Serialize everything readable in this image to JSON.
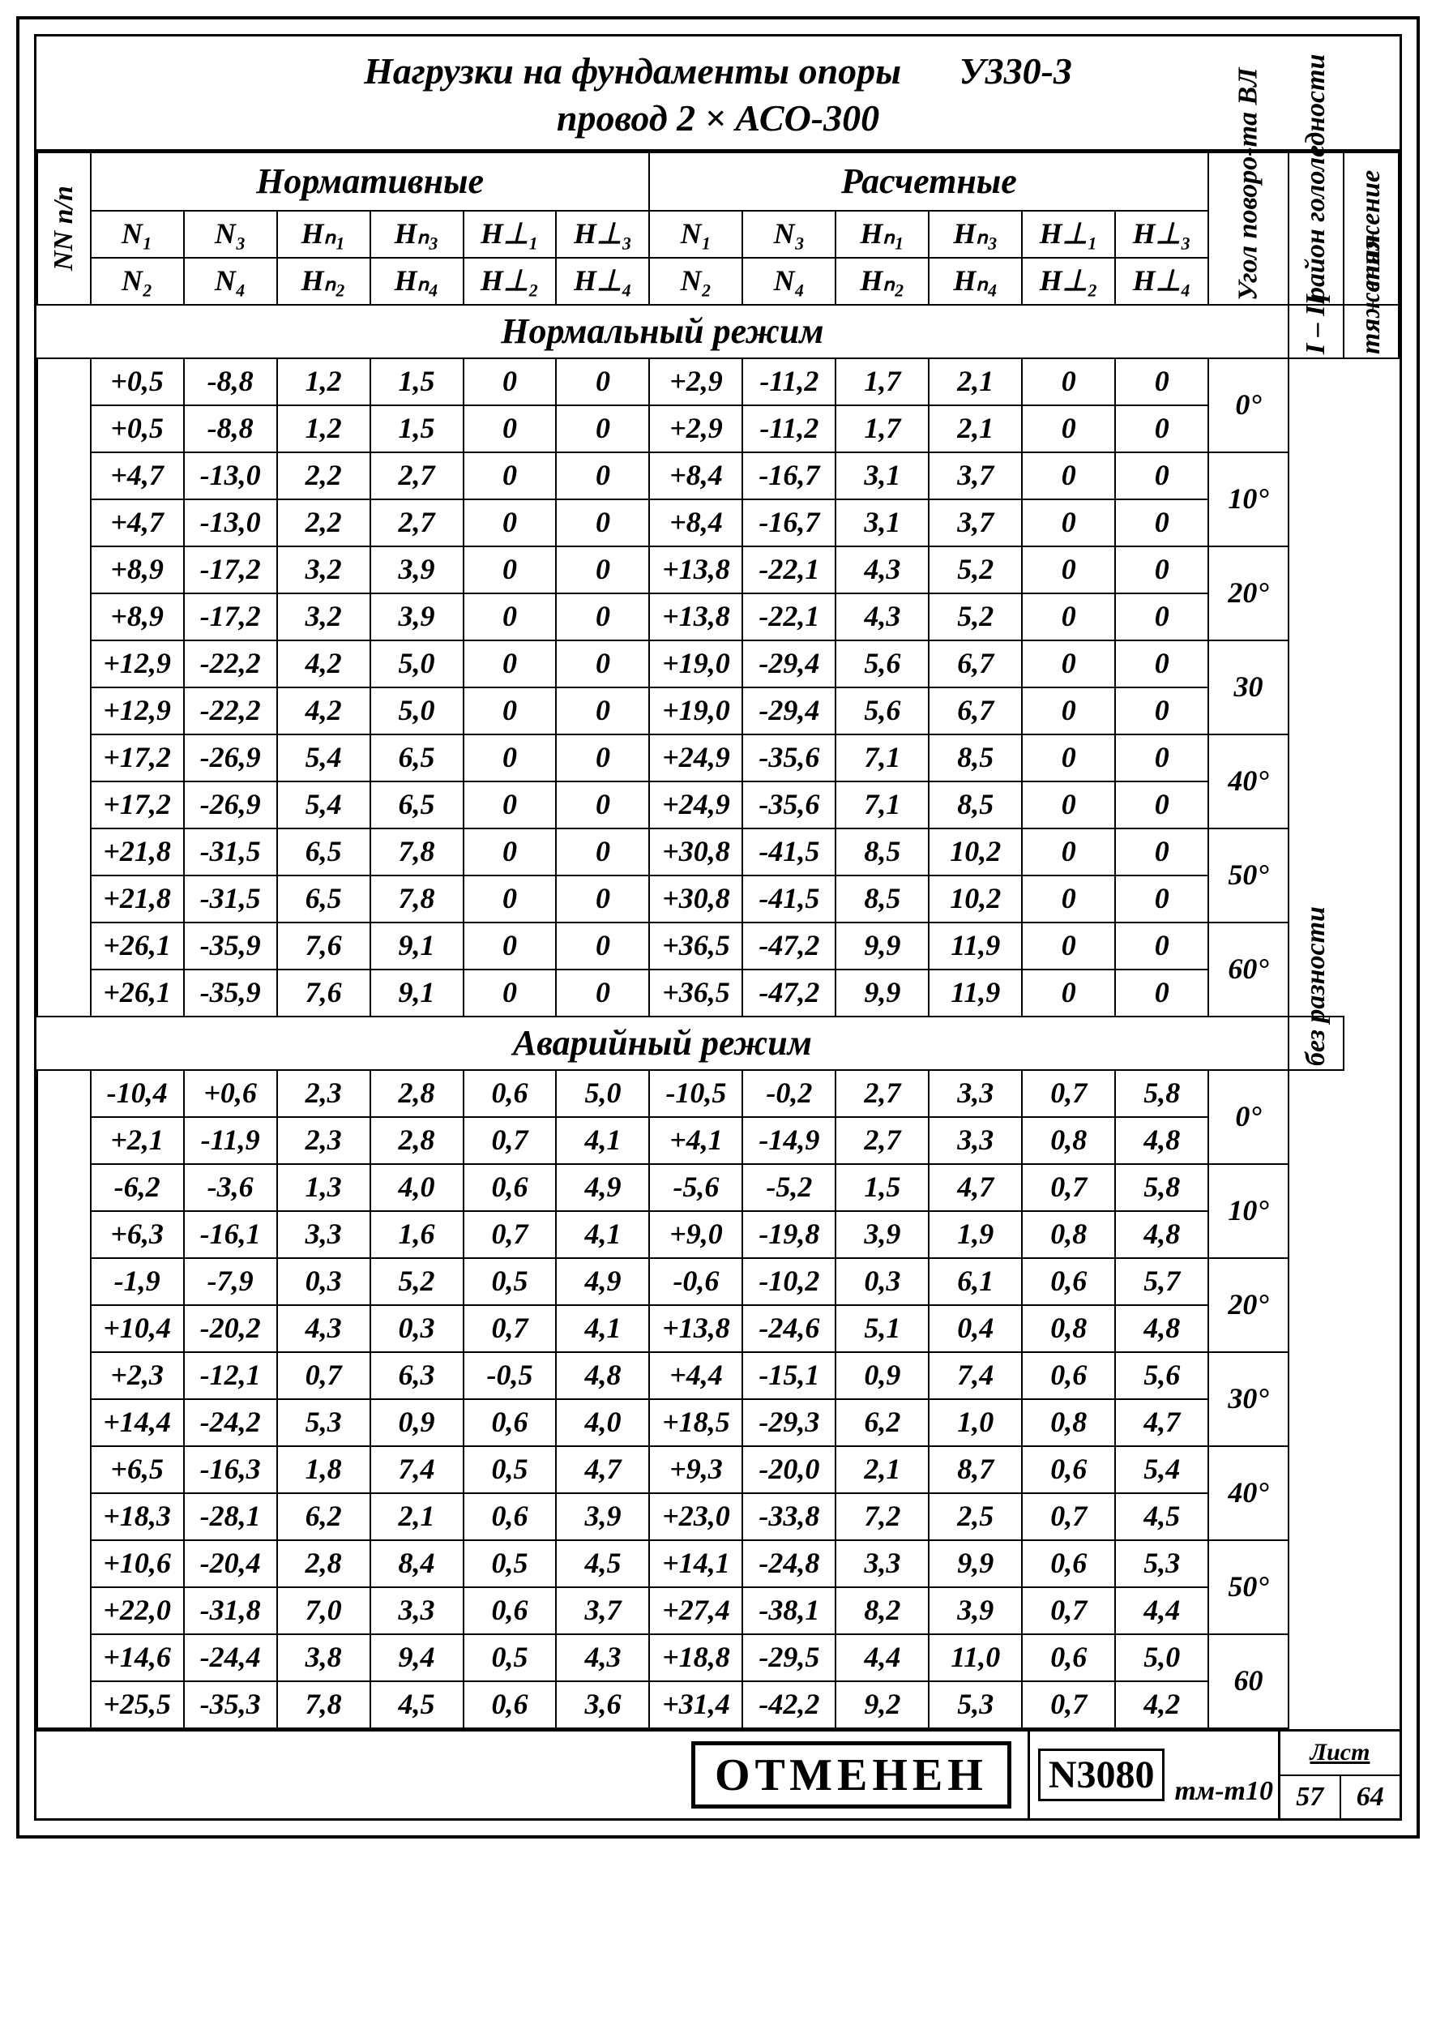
{
  "title_line1": "Нагрузки   на фундаменты   опоры",
  "title_code": "У330-3",
  "title_line2": "провод  2 × АСО-300",
  "group_norm": "Нормативные",
  "group_calc": "Расчетные",
  "col_nn": "NN п/п",
  "col_angle": "Угол поворо-та ВЛ",
  "col_ice": "район гололедности",
  "col_tension": "тяжение",
  "h": {
    "N1": "N₁",
    "N2": "N₂",
    "N3": "N₃",
    "N4": "N₄",
    "Hn1": "Hₙ₁",
    "Hn2": "Hₙ₂",
    "Hn3": "Hₙ₃",
    "Hn4": "Hₙ₄",
    "Hl1": "H⊥₁",
    "Hl2": "H⊥₂",
    "Hl3": "H⊥₃",
    "Hl4": "H⊥₄"
  },
  "section_normal": "Нормальный  режим",
  "section_emerg": "Аварийный  режим",
  "ice_region": "I – II",
  "tension_normal": "тяжения",
  "tension_emerg": "без   разности",
  "normal": [
    {
      "ang": "0°",
      "r1": [
        "+0,5",
        "-8,8",
        "1,2",
        "1,5",
        "0",
        "0",
        "+2,9",
        "-11,2",
        "1,7",
        "2,1",
        "0",
        "0"
      ],
      "r2": [
        "+0,5",
        "-8,8",
        "1,2",
        "1,5",
        "0",
        "0",
        "+2,9",
        "-11,2",
        "1,7",
        "2,1",
        "0",
        "0"
      ]
    },
    {
      "ang": "10°",
      "r1": [
        "+4,7",
        "-13,0",
        "2,2",
        "2,7",
        "0",
        "0",
        "+8,4",
        "-16,7",
        "3,1",
        "3,7",
        "0",
        "0"
      ],
      "r2": [
        "+4,7",
        "-13,0",
        "2,2",
        "2,7",
        "0",
        "0",
        "+8,4",
        "-16,7",
        "3,1",
        "3,7",
        "0",
        "0"
      ]
    },
    {
      "ang": "20°",
      "r1": [
        "+8,9",
        "-17,2",
        "3,2",
        "3,9",
        "0",
        "0",
        "+13,8",
        "-22,1",
        "4,3",
        "5,2",
        "0",
        "0"
      ],
      "r2": [
        "+8,9",
        "-17,2",
        "3,2",
        "3,9",
        "0",
        "0",
        "+13,8",
        "-22,1",
        "4,3",
        "5,2",
        "0",
        "0"
      ]
    },
    {
      "ang": "30",
      "r1": [
        "+12,9",
        "-22,2",
        "4,2",
        "5,0",
        "0",
        "0",
        "+19,0",
        "-29,4",
        "5,6",
        "6,7",
        "0",
        "0"
      ],
      "r2": [
        "+12,9",
        "-22,2",
        "4,2",
        "5,0",
        "0",
        "0",
        "+19,0",
        "-29,4",
        "5,6",
        "6,7",
        "0",
        "0"
      ]
    },
    {
      "ang": "40°",
      "r1": [
        "+17,2",
        "-26,9",
        "5,4",
        "6,5",
        "0",
        "0",
        "+24,9",
        "-35,6",
        "7,1",
        "8,5",
        "0",
        "0"
      ],
      "r2": [
        "+17,2",
        "-26,9",
        "5,4",
        "6,5",
        "0",
        "0",
        "+24,9",
        "-35,6",
        "7,1",
        "8,5",
        "0",
        "0"
      ]
    },
    {
      "ang": "50°",
      "r1": [
        "+21,8",
        "-31,5",
        "6,5",
        "7,8",
        "0",
        "0",
        "+30,8",
        "-41,5",
        "8,5",
        "10,2",
        "0",
        "0"
      ],
      "r2": [
        "+21,8",
        "-31,5",
        "6,5",
        "7,8",
        "0",
        "0",
        "+30,8",
        "-41,5",
        "8,5",
        "10,2",
        "0",
        "0"
      ]
    },
    {
      "ang": "60°",
      "r1": [
        "+26,1",
        "-35,9",
        "7,6",
        "9,1",
        "0",
        "0",
        "+36,5",
        "-47,2",
        "9,9",
        "11,9",
        "0",
        "0"
      ],
      "r2": [
        "+26,1",
        "-35,9",
        "7,6",
        "9,1",
        "0",
        "0",
        "+36,5",
        "-47,2",
        "9,9",
        "11,9",
        "0",
        "0"
      ]
    }
  ],
  "emerg": [
    {
      "ang": "0°",
      "r1": [
        "-10,4",
        "+0,6",
        "2,3",
        "2,8",
        "0,6",
        "5,0",
        "-10,5",
        "-0,2",
        "2,7",
        "3,3",
        "0,7",
        "5,8"
      ],
      "r2": [
        "+2,1",
        "-11,9",
        "2,3",
        "2,8",
        "0,7",
        "4,1",
        "+4,1",
        "-14,9",
        "2,7",
        "3,3",
        "0,8",
        "4,8"
      ]
    },
    {
      "ang": "10°",
      "r1": [
        "-6,2",
        "-3,6",
        "1,3",
        "4,0",
        "0,6",
        "4,9",
        "-5,6",
        "-5,2",
        "1,5",
        "4,7",
        "0,7",
        "5,8"
      ],
      "r2": [
        "+6,3",
        "-16,1",
        "3,3",
        "1,6",
        "0,7",
        "4,1",
        "+9,0",
        "-19,8",
        "3,9",
        "1,9",
        "0,8",
        "4,8"
      ]
    },
    {
      "ang": "20°",
      "r1": [
        "-1,9",
        "-7,9",
        "0,3",
        "5,2",
        "0,5",
        "4,9",
        "-0,6",
        "-10,2",
        "0,3",
        "6,1",
        "0,6",
        "5,7"
      ],
      "r2": [
        "+10,4",
        "-20,2",
        "4,3",
        "0,3",
        "0,7",
        "4,1",
        "+13,8",
        "-24,6",
        "5,1",
        "0,4",
        "0,8",
        "4,8"
      ]
    },
    {
      "ang": "30°",
      "r1": [
        "+2,3",
        "-12,1",
        "0,7",
        "6,3",
        "-0,5",
        "4,8",
        "+4,4",
        "-15,1",
        "0,9",
        "7,4",
        "0,6",
        "5,6"
      ],
      "r2": [
        "+14,4",
        "-24,2",
        "5,3",
        "0,9",
        "0,6",
        "4,0",
        "+18,5",
        "-29,3",
        "6,2",
        "1,0",
        "0,8",
        "4,7"
      ]
    },
    {
      "ang": "40°",
      "r1": [
        "+6,5",
        "-16,3",
        "1,8",
        "7,4",
        "0,5",
        "4,7",
        "+9,3",
        "-20,0",
        "2,1",
        "8,7",
        "0,6",
        "5,4"
      ],
      "r2": [
        "+18,3",
        "-28,1",
        "6,2",
        "2,1",
        "0,6",
        "3,9",
        "+23,0",
        "-33,8",
        "7,2",
        "2,5",
        "0,7",
        "4,5"
      ]
    },
    {
      "ang": "50°",
      "r1": [
        "+10,6",
        "-20,4",
        "2,8",
        "8,4",
        "0,5",
        "4,5",
        "+14,1",
        "-24,8",
        "3,3",
        "9,9",
        "0,6",
        "5,3"
      ],
      "r2": [
        "+22,0",
        "-31,8",
        "7,0",
        "3,3",
        "0,6",
        "3,7",
        "+27,4",
        "-38,1",
        "8,2",
        "3,9",
        "0,7",
        "4,4"
      ]
    },
    {
      "ang": "60",
      "r1": [
        "+14,6",
        "-24,4",
        "3,8",
        "9,4",
        "0,5",
        "4,3",
        "+18,8",
        "-29,5",
        "4,4",
        "11,0",
        "0,6",
        "5,0"
      ],
      "r2": [
        "+25,5",
        "-35,3",
        "7,8",
        "4,5",
        "0,6",
        "3,6",
        "+31,4",
        "-42,2",
        "9,2",
        "5,3",
        "0,7",
        "4,2"
      ]
    }
  ],
  "footer": {
    "stamp": "ОТМЕНЕН",
    "docnum": "N3080",
    "docsuffix": "тм-т10",
    "sheet_label": "Лист",
    "sheet_cur": "57",
    "sheet_total": "64"
  },
  "style": {
    "border_color": "#000000",
    "bg": "#ffffff",
    "font": "Times New Roman italic bold",
    "title_fontsize": 46,
    "cell_fontsize": 36,
    "header_fontsize": 44
  }
}
